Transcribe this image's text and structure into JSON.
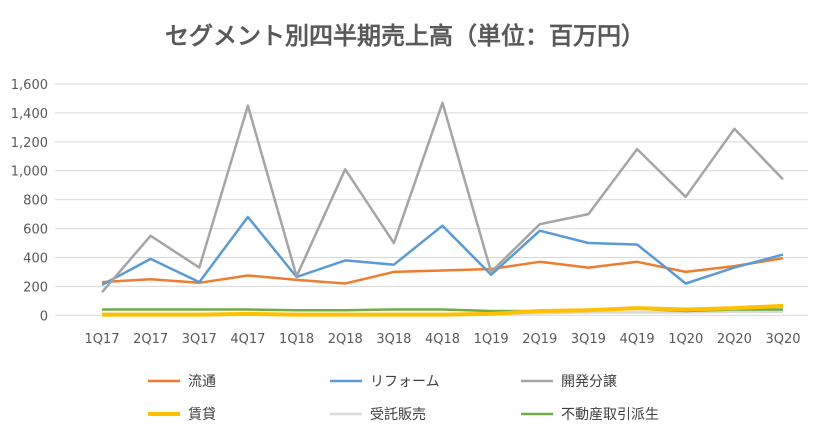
{
  "chart_data": {
    "type": "line",
    "title": "セグメント別四半期売上高（単位：百万円）",
    "xlabel": "",
    "ylabel": "",
    "ylim": [
      0,
      1600
    ],
    "yticks": [
      "0",
      "200",
      "400",
      "600",
      "800",
      "1,000",
      "1,200",
      "1,400",
      "1,600"
    ],
    "ytick_values": [
      0,
      200,
      400,
      600,
      800,
      1000,
      1200,
      1400,
      1600
    ],
    "grid": true,
    "legend_position": "bottom",
    "categories": [
      "1Q17",
      "2Q17",
      "3Q17",
      "4Q17",
      "1Q18",
      "2Q18",
      "3Q18",
      "4Q18",
      "1Q19",
      "2Q19",
      "3Q19",
      "4Q19",
      "1Q20",
      "2Q20",
      "3Q20"
    ],
    "series": [
      {
        "name": "流通",
        "color": "#ED7D31",
        "width": 2.5,
        "values": [
          230,
          250,
          225,
          275,
          245,
          220,
          300,
          310,
          320,
          370,
          330,
          370,
          300,
          340,
          395
        ]
      },
      {
        "name": "リフォーム",
        "color": "#5B9BD5",
        "width": 2.5,
        "values": [
          210,
          390,
          230,
          680,
          265,
          380,
          350,
          620,
          280,
          585,
          500,
          490,
          220,
          330,
          420
        ]
      },
      {
        "name": "開発分譲",
        "color": "#A5A5A5",
        "width": 2.5,
        "values": [
          160,
          550,
          330,
          1450,
          270,
          1010,
          500,
          1470,
          300,
          630,
          700,
          1150,
          820,
          1290,
          940
        ]
      },
      {
        "name": "賃貸",
        "color": "#FFC000",
        "width": 4,
        "values": [
          5,
          5,
          5,
          10,
          5,
          5,
          5,
          5,
          10,
          30,
          35,
          50,
          40,
          50,
          65
        ]
      },
      {
        "name": "受託販売",
        "color": "#D9D9D9",
        "width": 2.5,
        "values": [
          10,
          10,
          10,
          10,
          10,
          10,
          10,
          10,
          10,
          15,
          20,
          20,
          20,
          25,
          25
        ]
      },
      {
        "name": "不動産取引派生",
        "color": "#70AD47",
        "width": 2.5,
        "values": [
          40,
          40,
          40,
          40,
          35,
          35,
          40,
          40,
          30,
          30,
          35,
          45,
          30,
          40,
          40
        ]
      }
    ]
  }
}
